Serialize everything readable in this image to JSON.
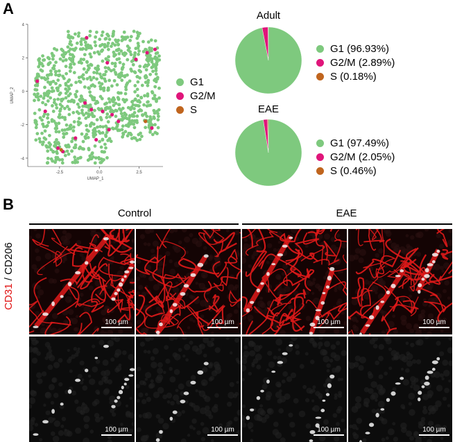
{
  "panel_a_letter": "A",
  "panel_b_letter": "B",
  "umap": {
    "xlabel": "UMAP_1",
    "ylabel": "UMAP_2",
    "xticks": [
      "-2.5",
      "0.0",
      "2.5"
    ],
    "yticks": [
      "4",
      "2",
      "0",
      "-2",
      "-4"
    ]
  },
  "legend_umap": [
    {
      "label": "G1",
      "color": "#7ec97e"
    },
    {
      "label": "G2/M",
      "color": "#e0157a"
    },
    {
      "label": "S",
      "color": "#c0651e"
    }
  ],
  "chart_data": [
    {
      "type": "scatter",
      "title": "",
      "xlabel": "UMAP_1",
      "ylabel": "UMAP_2",
      "xlim": [
        -4.5,
        4
      ],
      "ylim": [
        -4.5,
        4
      ],
      "series": [
        {
          "name": "G1",
          "color": "#7ec97e",
          "points": [
            [
              -3.8,
              0.9
            ],
            [
              -3.2,
              1.6
            ],
            [
              -2.1,
              2.3
            ],
            [
              -1.0,
              3.1
            ],
            [
              0.5,
              3.4
            ],
            [
              2.5,
              2.4
            ],
            [
              3.2,
              1.0
            ],
            [
              3.6,
              -0.5
            ],
            [
              3.5,
              -2.0
            ],
            [
              2.0,
              -2.6
            ],
            [
              0.5,
              -2.3
            ],
            [
              -1.5,
              -2.9
            ],
            [
              -2.9,
              -3.6
            ],
            [
              -2.5,
              -4.1
            ],
            [
              -3.5,
              -1.5
            ],
            [
              -2.0,
              0.0
            ],
            [
              0.0,
              0.5
            ],
            [
              1.5,
              -0.5
            ],
            [
              -0.5,
              -1.0
            ],
            [
              1.0,
              1.5
            ]
          ]
        },
        {
          "name": "G2/M",
          "color": "#e0157a",
          "points": [
            [
              -0.8,
              3.2
            ],
            [
              2.3,
              1.9
            ],
            [
              3.0,
              2.3
            ],
            [
              3.5,
              2.5
            ],
            [
              0.5,
              1.7
            ],
            [
              -3.9,
              0.6
            ],
            [
              -3.4,
              -1.2
            ],
            [
              -0.9,
              -0.7
            ],
            [
              -0.5,
              -1.1
            ],
            [
              0.2,
              -1.2
            ],
            [
              0.8,
              -1.4
            ],
            [
              1.2,
              -1.8
            ],
            [
              0.6,
              -2.3
            ],
            [
              -0.2,
              -2.9
            ],
            [
              -1.5,
              -2.8
            ],
            [
              -2.6,
              -3.4
            ],
            [
              -2.3,
              -3.6
            ],
            [
              3.3,
              -2.2
            ]
          ]
        },
        {
          "name": "S",
          "color": "#c0651e",
          "points": [
            [
              -2.4,
              -3.5
            ],
            [
              2.9,
              -1.8
            ]
          ]
        }
      ]
    },
    {
      "type": "pie",
      "title": "Adult",
      "slices": [
        {
          "label": "G1 (96.93%)",
          "value": 96.93,
          "color": "#7ec97e"
        },
        {
          "label": "G2/M (2.89%)",
          "value": 2.89,
          "color": "#e0157a"
        },
        {
          "label": "S (0.18%)",
          "value": 0.18,
          "color": "#c0651e"
        }
      ]
    },
    {
      "type": "pie",
      "title": "EAE",
      "slices": [
        {
          "label": "G1 (97.49%)",
          "value": 97.49,
          "color": "#7ec97e"
        },
        {
          "label": "G2/M (2.05%)",
          "value": 2.05,
          "color": "#e0157a"
        },
        {
          "label": "S (0.46%)",
          "value": 0.46,
          "color": "#c0651e"
        }
      ]
    }
  ],
  "groups": {
    "control": "Control",
    "eae": "EAE"
  },
  "ylabel_b": {
    "cd31": "CD31",
    "sep": " / ",
    "cd206": "CD206"
  },
  "scale_bar": "100 µm",
  "colors": {
    "g1": "#7ec97e",
    "g2m": "#e0157a",
    "s": "#c0651e",
    "vessel": "#e01a1a"
  }
}
